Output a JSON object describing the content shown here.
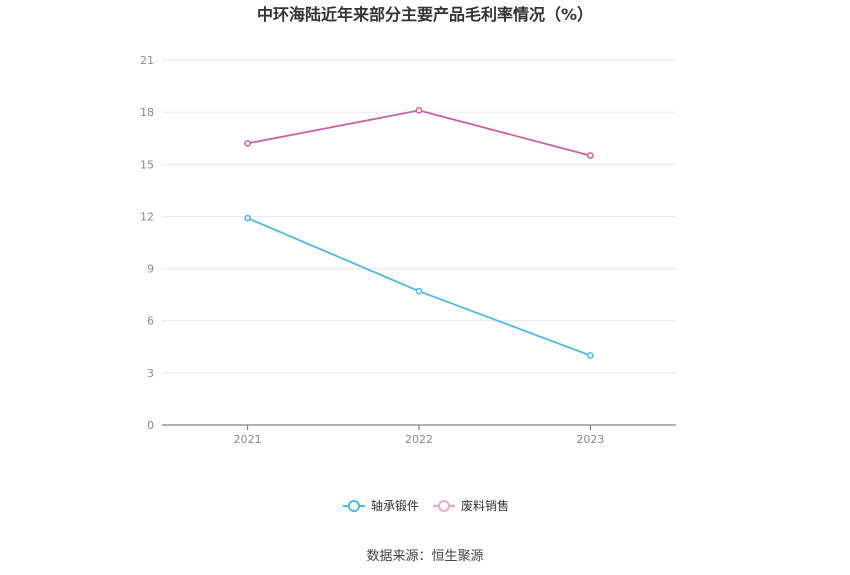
{
  "chart_data": {
    "type": "line",
    "title": "中环海陆近年来部分主要产品毛利率情况（%）",
    "categories": [
      "2021",
      "2022",
      "2023"
    ],
    "ylim": [
      0,
      21
    ],
    "yticks": [
      0,
      3,
      6,
      9,
      12,
      15,
      18,
      21
    ],
    "grid": true,
    "legend_position": "bottom",
    "series": [
      {
        "name": "轴承锻件",
        "color": "#4bbbe9",
        "values": [
          11.9,
          7.7,
          4.0
        ]
      },
      {
        "name": "废料销售",
        "color": "#cf5fa3",
        "values": [
          16.2,
          18.1,
          15.5
        ]
      }
    ]
  },
  "source_text": "数据来源：恒生聚源"
}
